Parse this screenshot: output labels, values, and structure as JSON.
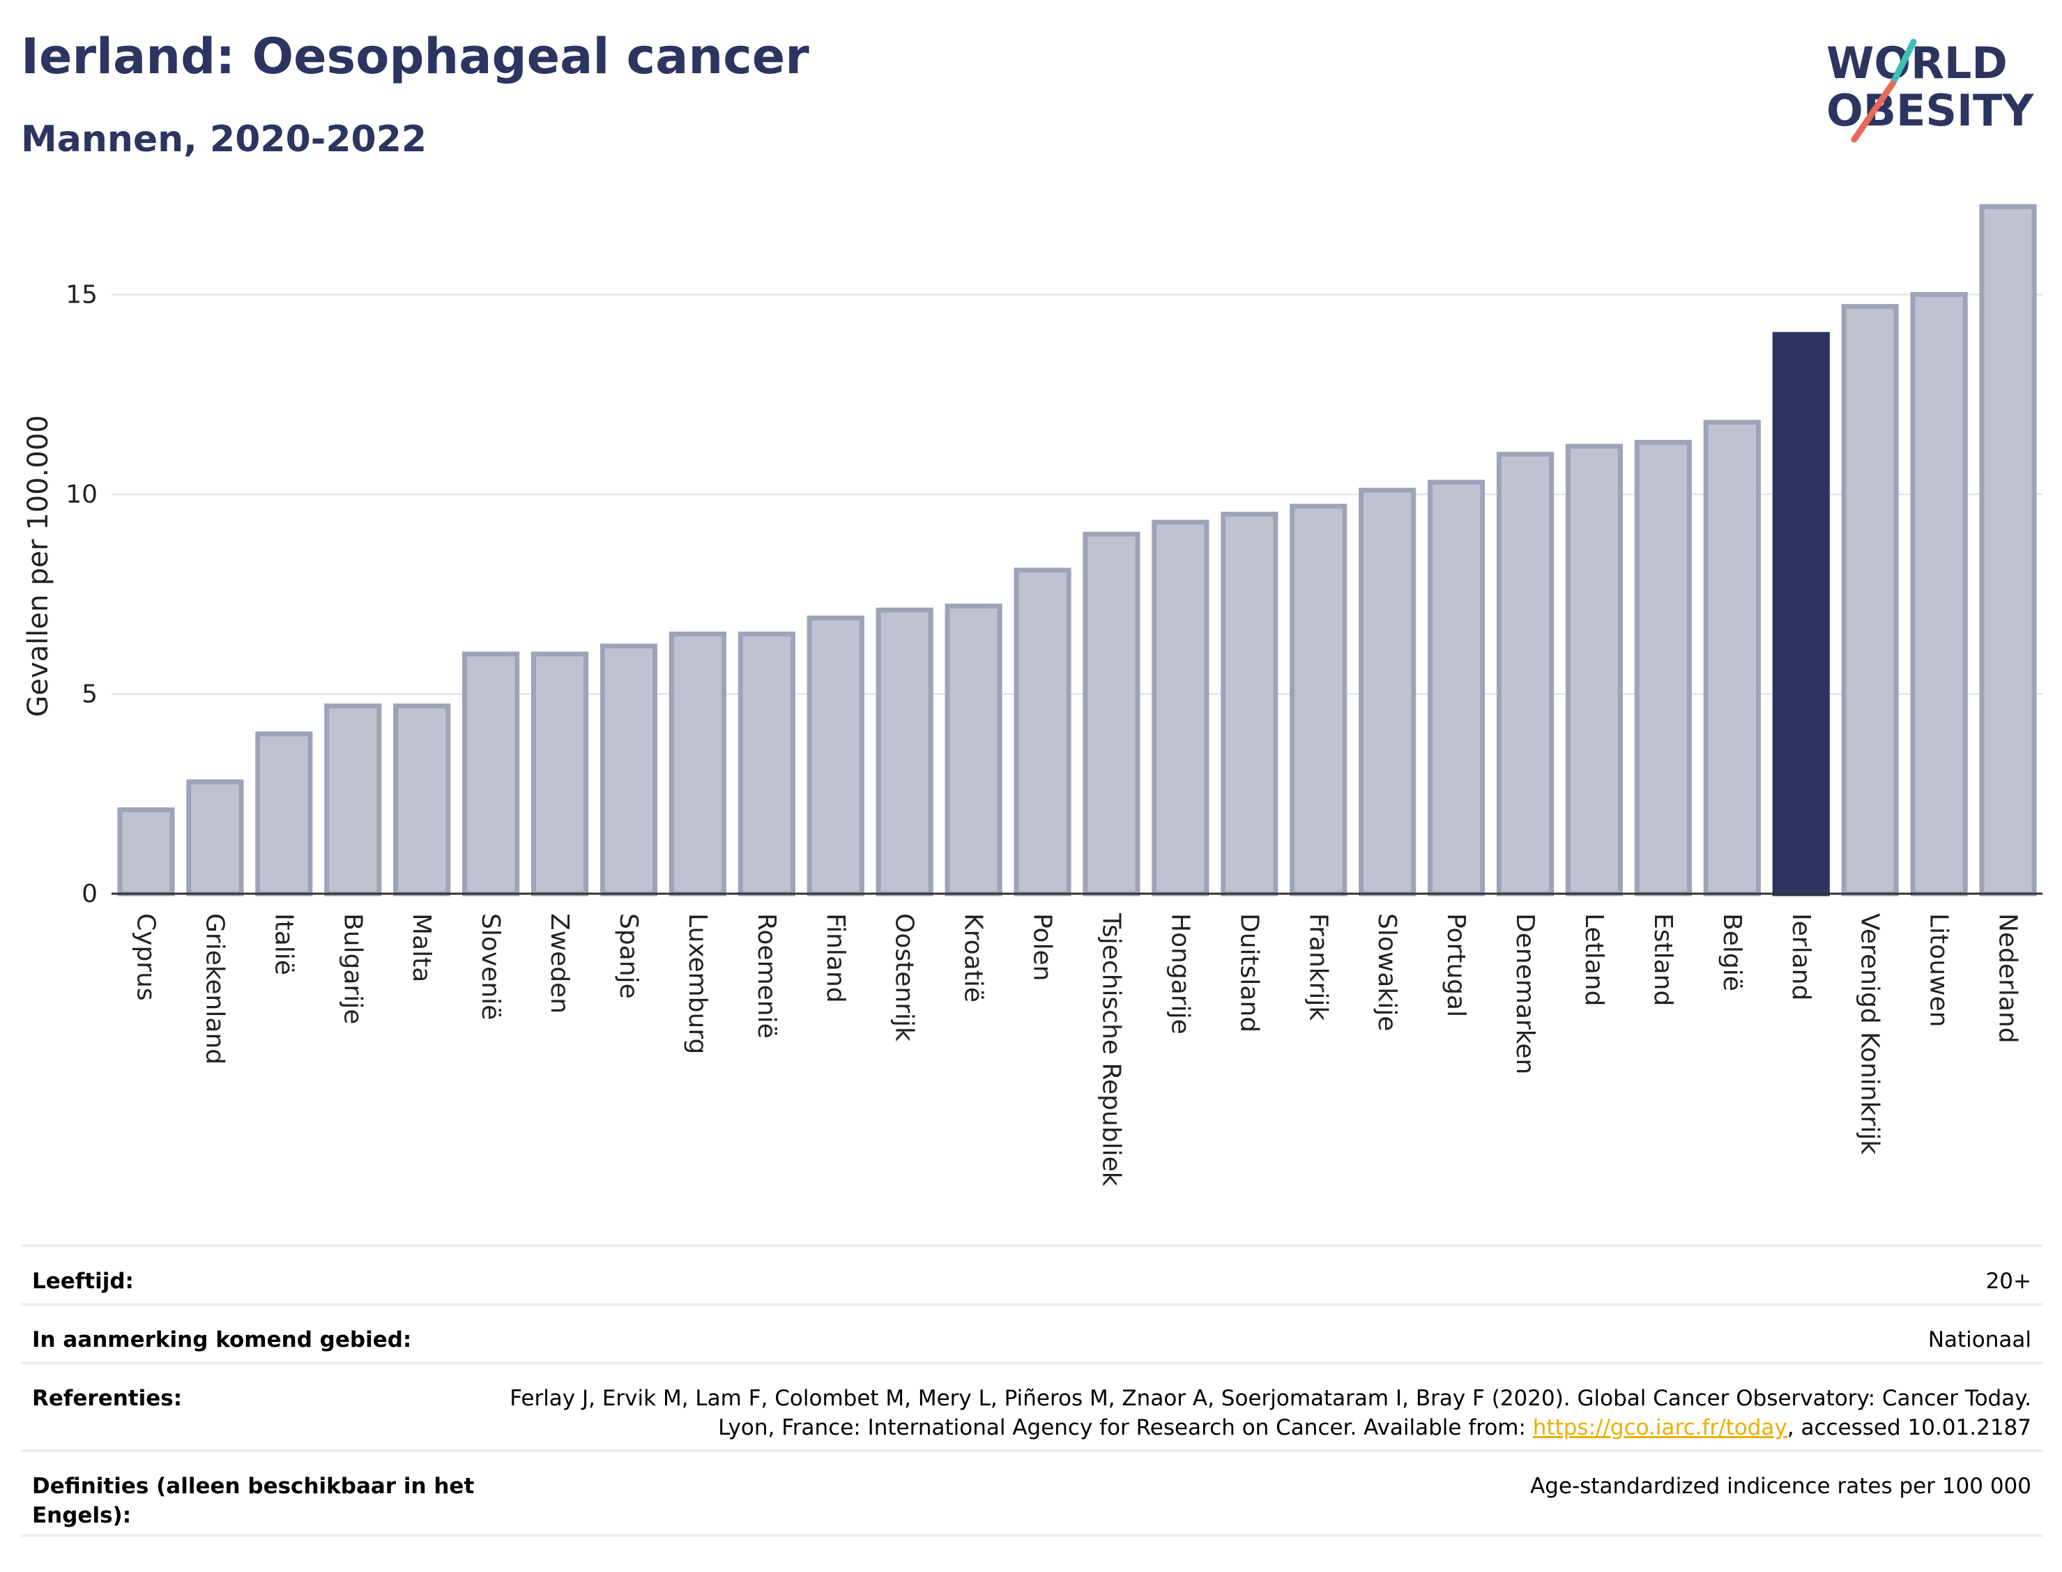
{
  "header": {
    "title": "Ierland: Oesophageal cancer",
    "subtitle": "Mannen, 2020-2022"
  },
  "logo": {
    "line1": "WORLD",
    "line2": "OBESITY",
    "colors": {
      "text": "#2b3560",
      "slash_red": "#e8685a",
      "slash_teal": "#3cbfb5"
    }
  },
  "chart_data": {
    "type": "bar",
    "ylabel": "Gevallen per 100.000",
    "ylim": [
      0,
      17.8
    ],
    "yticks": [
      0,
      5,
      10,
      15
    ],
    "grid": true,
    "categories": [
      "Cyprus",
      "Griekenland",
      "Italië",
      "Bulgarije",
      "Malta",
      "Slovenië",
      "Zweden",
      "Spanje",
      "Luxemburg",
      "Roemenië",
      "Finland",
      "Oostenrijk",
      "Kroatië",
      "Polen",
      "Tsjechische Republiek",
      "Hongarije",
      "Duitsland",
      "Frankrijk",
      "Slowakije",
      "Portugal",
      "Denemarken",
      "Letland",
      "Estland",
      "België",
      "Ierland",
      "Verenigd Koninkrijk",
      "Litouwen",
      "Nederland"
    ],
    "values": [
      2.1,
      2.8,
      4.0,
      4.7,
      4.7,
      6.0,
      6.0,
      6.2,
      6.5,
      6.5,
      6.9,
      7.1,
      7.2,
      8.1,
      9.0,
      9.3,
      9.5,
      9.7,
      10.1,
      10.3,
      11.0,
      11.2,
      11.3,
      11.8,
      14.0,
      14.7,
      15.0,
      17.2
    ],
    "highlight": "Ierland",
    "colors": {
      "bar": "#bfc2d0",
      "bar_edge": "#9ea3b8",
      "highlight": "#2b3560",
      "grid": "#e6e8ee",
      "axis": "#333333"
    }
  },
  "meta": [
    {
      "label": "Leeftijd:",
      "value": "20+"
    },
    {
      "label": "In aanmerking komend gebied:",
      "value": "Nationaal"
    },
    {
      "label": "Referenties:",
      "value_before": "Ferlay J, Ervik M, Lam F, Colombet M, Mery L, Piñeros M, Znaor A, Soerjomataram I, Bray F (2020). Global Cancer Observatory: Cancer Today. Lyon, France: International Agency for Research on Cancer. Available from: ",
      "link": "https://gco.iarc.fr/today",
      "value_after": ", accessed 10.01.2187"
    },
    {
      "label": "Definities (alleen beschikbaar in het Engels):",
      "value": "Age-standardized indicence rates per 100 000"
    }
  ]
}
